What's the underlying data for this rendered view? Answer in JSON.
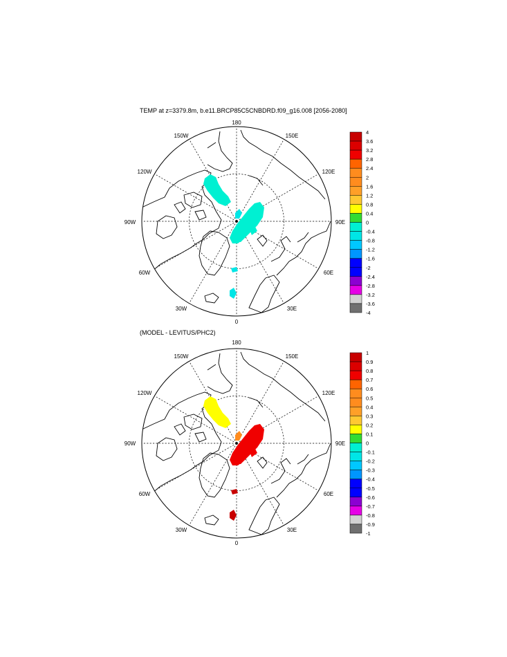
{
  "panels": [
    {
      "id": "top",
      "title": "TEMP at z=3379.8m, b.e11.BRCP85C5CNBDRD.f09_g16.008 [2056-2080]",
      "lon_labels": [
        "180",
        "150E",
        "120E",
        "90E",
        "60E",
        "30E",
        "0",
        "30W",
        "60W",
        "90W",
        "120W",
        "150W"
      ],
      "colorbar": {
        "labels": [
          "4",
          "3.6",
          "3.2",
          "2.8",
          "2.4",
          "2",
          "1.6",
          "1.2",
          "0.8",
          "0.4",
          "0",
          "-0.4",
          "-0.8",
          "-1.2",
          "-1.6",
          "-2",
          "-2.4",
          "-2.8",
          "-3.2",
          "-3.6",
          "-4"
        ]
      },
      "patch_color_indices": [
        9,
        9,
        9,
        9,
        10,
        10,
        10
      ]
    },
    {
      "id": "bottom",
      "title": "(MODEL - LEVITUS/PHC2)",
      "lon_labels": [
        "180",
        "150E",
        "120E",
        "90E",
        "60E",
        "30E",
        "0",
        "30W",
        "60W",
        "90W",
        "120W",
        "150W"
      ],
      "colorbar": {
        "labels": [
          "1",
          "0.9",
          "0.8",
          "0.7",
          "0.6",
          "0.5",
          "0.4",
          "0.3",
          "0.2",
          "0.1",
          "0",
          "-0.1",
          "-0.2",
          "-0.3",
          "-0.4",
          "-0.5",
          "-0.6",
          "-0.7",
          "-0.8",
          "-0.9",
          "-1"
        ]
      },
      "patch_color_indices": [
        7,
        2,
        2,
        2,
        4,
        0,
        0
      ]
    }
  ],
  "colors": {
    "scale": [
      "#c80000",
      "#dc0000",
      "#f00000",
      "#ff6400",
      "#ff8c1e",
      "#ffa028",
      "#ffc832",
      "#ffff00",
      "#32dc32",
      "#00f0d2",
      "#00e6e6",
      "#00c8ff",
      "#0096ff",
      "#0000ff",
      "#8c00d2",
      "#e600e6",
      "#d2d2d2",
      "#707070"
    ],
    "coast": "#000000",
    "grid": "#000000"
  }
}
